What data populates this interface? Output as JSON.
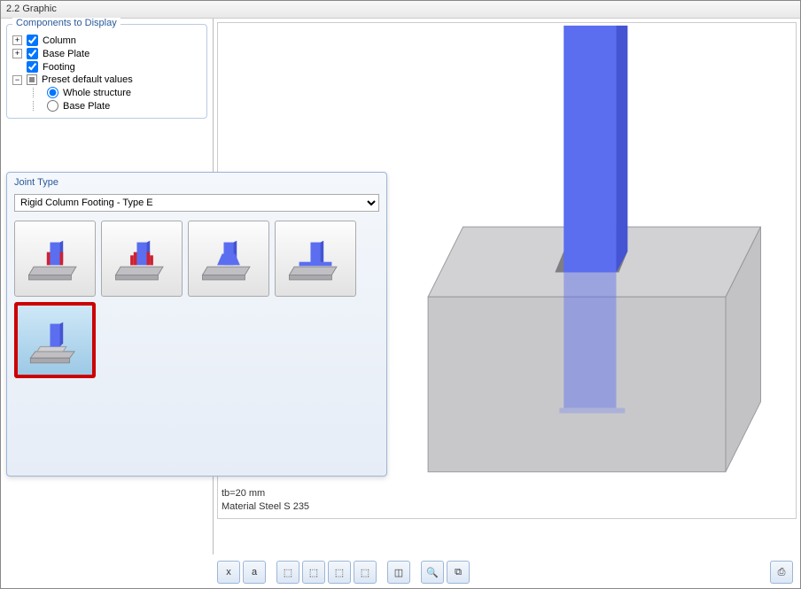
{
  "window": {
    "title": "2.2 Graphic"
  },
  "components_panel": {
    "legend": "Components to Display",
    "items": [
      {
        "label": "Column",
        "type": "checkbox",
        "checked": true,
        "expander": "+"
      },
      {
        "label": "Base Plate",
        "type": "checkbox",
        "checked": true,
        "expander": "+"
      },
      {
        "label": "Footing",
        "type": "checkbox",
        "checked": true,
        "expander": " "
      },
      {
        "label": "Preset default values",
        "type": "partial",
        "expander": "−"
      }
    ],
    "sub_items": [
      {
        "label": "Whole structure",
        "type": "radio",
        "checked": true
      },
      {
        "label": "Base Plate",
        "type": "radio",
        "checked": false
      }
    ]
  },
  "joint_panel": {
    "title": "Joint Type",
    "select_value": "Rigid Column Footing - Type E",
    "thumbs": [
      {
        "name": "type-a",
        "selected": false,
        "fin": true,
        "fin2": false,
        "block": false
      },
      {
        "name": "type-b",
        "selected": false,
        "fin": true,
        "fin2": true,
        "block": false
      },
      {
        "name": "type-c",
        "selected": false,
        "fin": false,
        "fin2": false,
        "block": false,
        "wedge": true
      },
      {
        "name": "type-d",
        "selected": false,
        "fin": false,
        "fin2": false,
        "block": false,
        "plate_wide": true
      },
      {
        "name": "type-e",
        "selected": true,
        "fin": false,
        "fin2": false,
        "block": true
      }
    ]
  },
  "viewport": {
    "column_color": "#5b6ef0",
    "column_shadow": "#4454d2",
    "footing_color": "rgba(160,160,165,0.55)",
    "footing_edge": "#9a9aa0",
    "opening_color": "#7e7e85",
    "plate_color": "#8a96e8",
    "status_lines": [
      "tb=20 mm",
      "Material Steel S 235"
    ]
  },
  "toolbar": {
    "buttons": [
      {
        "name": "x-axis",
        "glyph": "x"
      },
      {
        "name": "a-axis",
        "glyph": "a"
      },
      {
        "name": "view1",
        "glyph": "⬚"
      },
      {
        "name": "view2",
        "glyph": "⬚"
      },
      {
        "name": "view3",
        "glyph": "⬚"
      },
      {
        "name": "view4",
        "glyph": "⬚"
      },
      {
        "name": "iso",
        "glyph": "◫"
      },
      {
        "name": "zoom",
        "glyph": "🔍"
      },
      {
        "name": "copy",
        "glyph": "⧉"
      }
    ],
    "right_button": {
      "name": "print",
      "glyph": "⎙"
    }
  },
  "colors": {
    "panel_border": "#9cb6d8",
    "legend_text": "#2a5a9a"
  }
}
